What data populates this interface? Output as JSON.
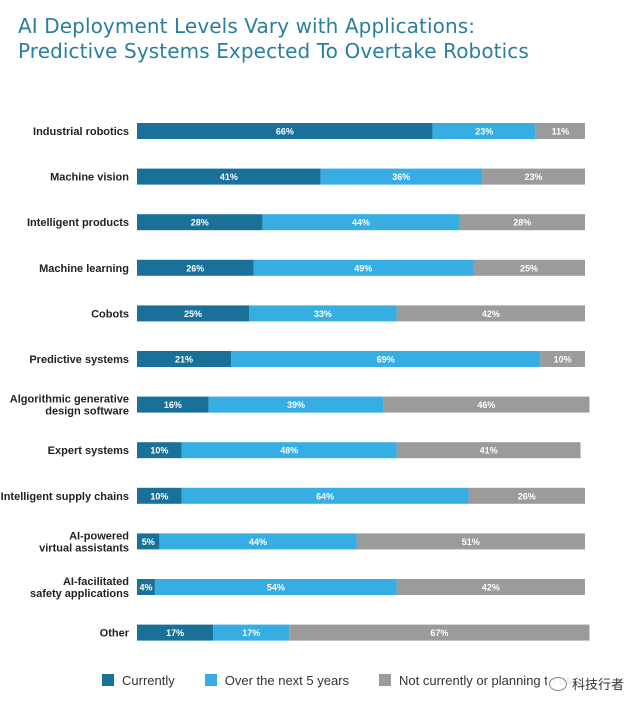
{
  "title_lines": [
    "AI Deployment Levels Vary with Applications:",
    "Predictive Systems Expected To Overtake Robotics"
  ],
  "colors": {
    "currently": "#19719a",
    "next5": "#36aee3",
    "not": "#9b9b9b",
    "title": "#2a7f9e"
  },
  "legend": [
    {
      "label": "Currently",
      "color": "#19719a"
    },
    {
      "label": "Over the next 5 years",
      "color": "#36aee3"
    },
    {
      "label": "Not currently or planning to use",
      "color": "#9b9b9b"
    }
  ],
  "watermark": "科技行者",
  "chart_data": {
    "type": "bar",
    "orientation": "horizontal",
    "stacked": true,
    "title": "AI Deployment Levels Vary with Applications: Predictive Systems Expected To Overtake Robotics",
    "categories": [
      [
        "Industrial robotics"
      ],
      [
        "Machine vision"
      ],
      [
        "Intelligent products"
      ],
      [
        "Machine learning"
      ],
      [
        "Cobots"
      ],
      [
        "Predictive systems"
      ],
      [
        "Algorithmic generative",
        "design software"
      ],
      [
        "Expert systems"
      ],
      [
        "Intelligent supply chains"
      ],
      [
        "AI-powered",
        "virtual assistants"
      ],
      [
        "AI-facilitated",
        "safety applications"
      ],
      [
        "Other"
      ]
    ],
    "series": [
      {
        "name": "Currently",
        "values": [
          66,
          41,
          28,
          26,
          25,
          21,
          16,
          10,
          10,
          5,
          4,
          17
        ]
      },
      {
        "name": "Over the next 5 years",
        "values": [
          23,
          36,
          44,
          49,
          33,
          69,
          39,
          48,
          64,
          44,
          54,
          17
        ]
      },
      {
        "name": "Not currently or planning to use",
        "values": [
          11,
          23,
          28,
          25,
          42,
          10,
          46,
          41,
          26,
          51,
          42,
          67
        ]
      }
    ],
    "value_suffix": "%",
    "legend_position": "bottom",
    "grid": false
  }
}
